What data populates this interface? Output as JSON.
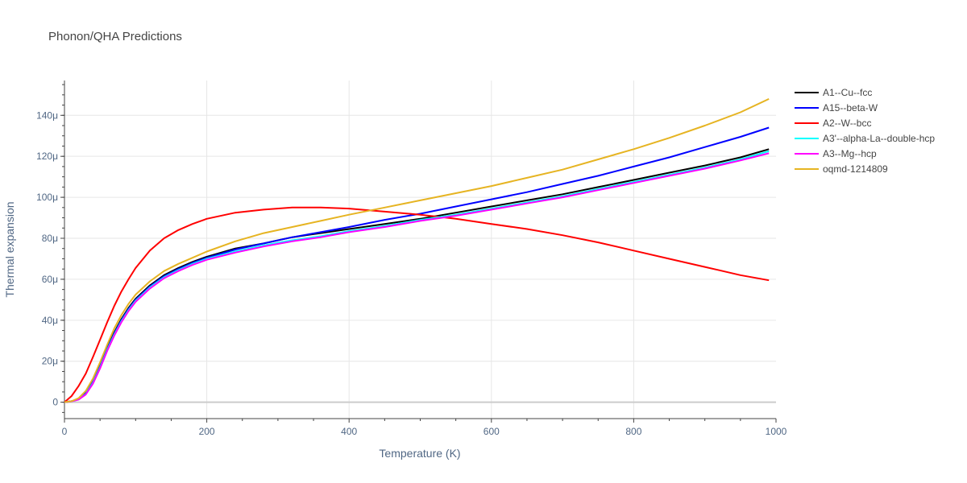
{
  "chart_data": {
    "type": "line",
    "title": "Phonon/QHA Predictions",
    "xlabel": "Temperature (K)",
    "ylabel": "Thermal expansion",
    "xlim": [
      0,
      1000
    ],
    "ylim": [
      -8e-06,
      0.000157
    ],
    "x_ticks": [
      0,
      200,
      400,
      600,
      800,
      1000
    ],
    "x_tick_labels": [
      "0",
      "200",
      "400",
      "600",
      "800",
      "1000"
    ],
    "y_ticks": [
      0,
      2e-05,
      4e-05,
      6e-05,
      8e-05,
      0.0001,
      0.00012,
      0.00014
    ],
    "y_tick_labels": [
      "0",
      "20μ",
      "40μ",
      "60μ",
      "80μ",
      "100μ",
      "120μ",
      "140μ"
    ],
    "grid": true,
    "legend_position": "right",
    "x": [
      0,
      10,
      20,
      30,
      40,
      50,
      60,
      70,
      80,
      90,
      100,
      120,
      140,
      160,
      180,
      200,
      240,
      280,
      320,
      360,
      400,
      450,
      500,
      550,
      600,
      650,
      700,
      750,
      800,
      850,
      900,
      950,
      990
    ],
    "series": [
      {
        "name": "A1--Cu--fcc",
        "color": "#000000",
        "values": [
          0,
          5e-07,
          1.5e-06,
          4.5e-06,
          1e-05,
          1.8e-05,
          2.65e-05,
          3.4e-05,
          4.05e-05,
          4.6e-05,
          5.05e-05,
          5.7e-05,
          6.2e-05,
          6.55e-05,
          6.85e-05,
          7.1e-05,
          7.5e-05,
          7.75e-05,
          8.05e-05,
          8.25e-05,
          8.45e-05,
          8.7e-05,
          8.95e-05,
          9.25e-05,
          9.55e-05,
          9.85e-05,
          0.0001015,
          0.000105,
          0.0001085,
          0.000112,
          0.0001155,
          0.0001195,
          0.0001235
        ]
      },
      {
        "name": "A15--beta-W",
        "color": "#0000ff",
        "values": [
          0,
          5e-07,
          1.5e-06,
          4.5e-06,
          1e-05,
          1.75e-05,
          2.6e-05,
          3.35e-05,
          4e-05,
          4.55e-05,
          5e-05,
          5.65e-05,
          6.15e-05,
          6.5e-05,
          6.8e-05,
          7.05e-05,
          7.45e-05,
          7.75e-05,
          8.05e-05,
          8.3e-05,
          8.55e-05,
          8.9e-05,
          9.2e-05,
          9.55e-05,
          9.9e-05,
          0.0001025,
          0.0001065,
          0.0001105,
          0.000115,
          0.0001195,
          0.0001245,
          0.0001295,
          0.000134
        ]
      },
      {
        "name": "A2--W--bcc",
        "color": "#ff0000",
        "values": [
          0,
          3e-06,
          8e-06,
          1.4e-05,
          2.2e-05,
          3.05e-05,
          3.9e-05,
          4.7e-05,
          5.4e-05,
          6e-05,
          6.55e-05,
          7.4e-05,
          8e-05,
          8.4e-05,
          8.7e-05,
          8.95e-05,
          9.25e-05,
          9.4e-05,
          9.5e-05,
          9.5e-05,
          9.45e-05,
          9.3e-05,
          9.15e-05,
          8.95e-05,
          8.7e-05,
          8.45e-05,
          8.15e-05,
          7.8e-05,
          7.4e-05,
          7e-05,
          6.6e-05,
          6.2e-05,
          5.95e-05
        ]
      },
      {
        "name": "A3'--alpha-La--double-hcp",
        "color": "#00ffff",
        "values": [
          0,
          4e-07,
          1.4e-06,
          4e-06,
          9.5e-06,
          1.7e-05,
          2.55e-05,
          3.3e-05,
          3.95e-05,
          4.5e-05,
          4.95e-05,
          5.6e-05,
          6.1e-05,
          6.45e-05,
          6.75e-05,
          7e-05,
          7.35e-05,
          7.65e-05,
          7.9e-05,
          8.1e-05,
          8.35e-05,
          8.6e-05,
          8.9e-05,
          9.15e-05,
          9.45e-05,
          9.75e-05,
          0.0001005,
          0.000104,
          0.0001075,
          0.000111,
          0.0001145,
          0.0001185,
          0.0001225
        ]
      },
      {
        "name": "A3--Mg--hcp",
        "color": "#ff00ff",
        "values": [
          0,
          4e-07,
          1.3e-06,
          3.8e-06,
          9e-06,
          1.65e-05,
          2.5e-05,
          3.25e-05,
          3.9e-05,
          4.45e-05,
          4.9e-05,
          5.55e-05,
          6.05e-05,
          6.4e-05,
          6.7e-05,
          6.95e-05,
          7.3e-05,
          7.6e-05,
          7.85e-05,
          8.05e-05,
          8.3e-05,
          8.55e-05,
          8.85e-05,
          9.1e-05,
          9.4e-05,
          9.7e-05,
          0.0001,
          0.0001035,
          0.000107,
          0.0001105,
          0.000114,
          0.000118,
          0.0001215
        ]
      },
      {
        "name": "oqmd-1214809",
        "color": "#e6b422",
        "values": [
          0,
          5e-07,
          2e-06,
          5.5e-06,
          1.15e-05,
          1.95e-05,
          2.8e-05,
          3.6e-05,
          4.25e-05,
          4.8e-05,
          5.25e-05,
          5.9e-05,
          6.4e-05,
          6.75e-05,
          7.05e-05,
          7.35e-05,
          7.85e-05,
          8.25e-05,
          8.55e-05,
          8.85e-05,
          9.15e-05,
          9.5e-05,
          9.85e-05,
          0.000102,
          0.0001055,
          0.0001095,
          0.0001135,
          0.0001185,
          0.0001235,
          0.000129,
          0.000135,
          0.0001415,
          0.000148
        ]
      }
    ]
  }
}
